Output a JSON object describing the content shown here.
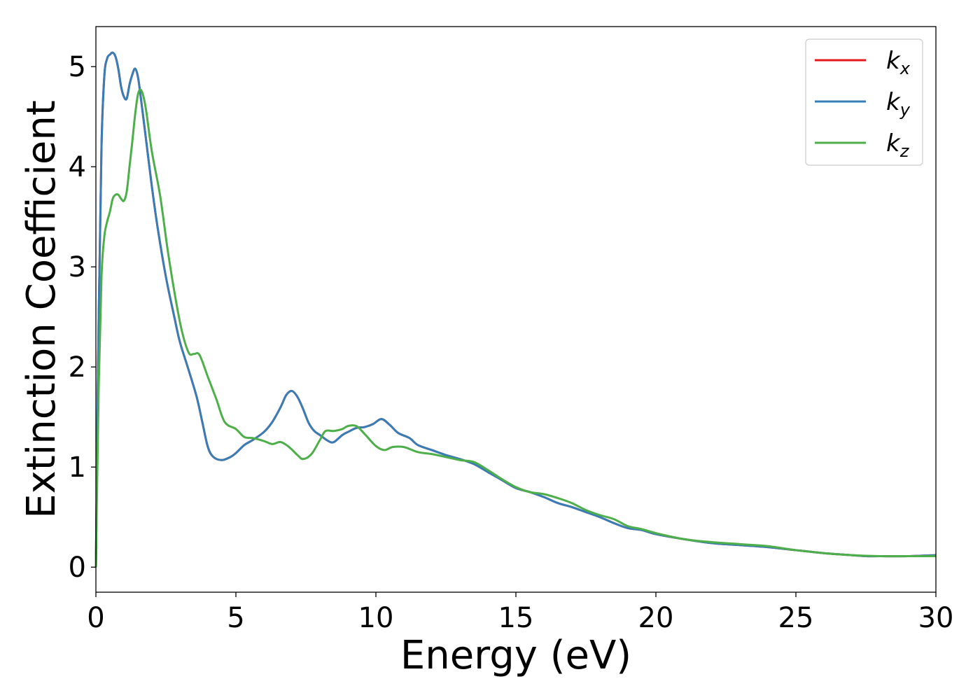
{
  "chart_data": {
    "type": "line",
    "xlabel": "Energy (eV)",
    "ylabel": "Extinction Coefficient",
    "xlim": [
      0,
      30
    ],
    "ylim": [
      -0.25,
      5.4
    ],
    "xticks": [
      0,
      5,
      10,
      15,
      20,
      25,
      30
    ],
    "yticks": [
      0,
      1,
      2,
      3,
      4,
      5
    ],
    "grid": false,
    "legend_position": "upper right",
    "series": [
      {
        "name": "k",
        "subscript": "x",
        "color": "#e41a1c",
        "x": [
          0,
          0.1,
          0.2,
          0.3,
          0.4,
          0.5,
          0.6,
          0.7,
          0.8,
          0.9,
          1.0,
          1.1,
          1.2,
          1.3,
          1.4,
          1.5,
          1.6,
          1.8,
          2.0,
          2.2,
          2.5,
          2.8,
          3.0,
          3.3,
          3.6,
          3.8,
          4.0,
          4.2,
          4.5,
          4.8,
          5.0,
          5.3,
          5.6,
          6.0,
          6.3,
          6.6,
          6.8,
          7.0,
          7.2,
          7.4,
          7.6,
          7.8,
          8.0,
          8.3,
          8.5,
          8.8,
          9.0,
          9.3,
          9.6,
          9.9,
          10.2,
          10.5,
          10.8,
          11.2,
          11.5,
          12.0,
          12.5,
          13.0,
          13.5,
          14.0,
          14.5,
          15.0,
          15.5,
          16.0,
          16.5,
          17.0,
          17.5,
          18.0,
          18.5,
          19.0,
          19.5,
          20.0,
          21.0,
          22.0,
          23.0,
          24.0,
          25.0,
          26.0,
          27.0,
          27.5,
          28.0,
          29.0,
          30.0
        ],
        "y": [
          0,
          2.5,
          4.2,
          4.9,
          5.08,
          5.12,
          5.14,
          5.1,
          4.98,
          4.8,
          4.7,
          4.68,
          4.82,
          4.92,
          4.98,
          4.9,
          4.7,
          4.25,
          3.8,
          3.4,
          2.9,
          2.5,
          2.25,
          1.98,
          1.7,
          1.45,
          1.2,
          1.1,
          1.07,
          1.1,
          1.14,
          1.22,
          1.27,
          1.35,
          1.45,
          1.6,
          1.72,
          1.76,
          1.7,
          1.58,
          1.44,
          1.36,
          1.32,
          1.26,
          1.25,
          1.32,
          1.35,
          1.39,
          1.4,
          1.43,
          1.48,
          1.42,
          1.34,
          1.29,
          1.22,
          1.17,
          1.12,
          1.08,
          1.03,
          0.95,
          0.87,
          0.79,
          0.75,
          0.7,
          0.64,
          0.6,
          0.55,
          0.5,
          0.44,
          0.39,
          0.37,
          0.33,
          0.28,
          0.24,
          0.22,
          0.2,
          0.17,
          0.14,
          0.12,
          0.11,
          0.11,
          0.11,
          0.12
        ]
      },
      {
        "name": "k",
        "subscript": "y",
        "color": "#377eb8",
        "x": [
          0,
          0.1,
          0.2,
          0.3,
          0.4,
          0.5,
          0.6,
          0.7,
          0.8,
          0.9,
          1.0,
          1.1,
          1.2,
          1.3,
          1.4,
          1.5,
          1.6,
          1.8,
          2.0,
          2.2,
          2.5,
          2.8,
          3.0,
          3.3,
          3.6,
          3.8,
          4.0,
          4.2,
          4.5,
          4.8,
          5.0,
          5.3,
          5.6,
          6.0,
          6.3,
          6.6,
          6.8,
          7.0,
          7.2,
          7.4,
          7.6,
          7.8,
          8.0,
          8.3,
          8.5,
          8.8,
          9.0,
          9.3,
          9.6,
          9.9,
          10.2,
          10.5,
          10.8,
          11.2,
          11.5,
          12.0,
          12.5,
          13.0,
          13.5,
          14.0,
          14.5,
          15.0,
          15.5,
          16.0,
          16.5,
          17.0,
          17.5,
          18.0,
          18.5,
          19.0,
          19.5,
          20.0,
          21.0,
          22.0,
          23.0,
          24.0,
          25.0,
          26.0,
          27.0,
          27.5,
          28.0,
          29.0,
          30.0
        ],
        "y": [
          0,
          2.5,
          4.2,
          4.9,
          5.08,
          5.12,
          5.14,
          5.1,
          4.98,
          4.8,
          4.7,
          4.68,
          4.82,
          4.92,
          4.98,
          4.9,
          4.7,
          4.25,
          3.8,
          3.4,
          2.9,
          2.5,
          2.25,
          1.98,
          1.7,
          1.45,
          1.2,
          1.1,
          1.07,
          1.1,
          1.14,
          1.22,
          1.27,
          1.35,
          1.45,
          1.6,
          1.72,
          1.76,
          1.7,
          1.58,
          1.44,
          1.36,
          1.32,
          1.26,
          1.25,
          1.32,
          1.35,
          1.39,
          1.4,
          1.43,
          1.48,
          1.42,
          1.34,
          1.29,
          1.22,
          1.17,
          1.12,
          1.08,
          1.03,
          0.95,
          0.87,
          0.79,
          0.75,
          0.7,
          0.64,
          0.6,
          0.55,
          0.5,
          0.44,
          0.39,
          0.37,
          0.33,
          0.28,
          0.24,
          0.22,
          0.2,
          0.17,
          0.14,
          0.12,
          0.11,
          0.11,
          0.11,
          0.12
        ]
      },
      {
        "name": "k",
        "subscript": "z",
        "color": "#4daf4a",
        "x": [
          0,
          0.1,
          0.2,
          0.3,
          0.4,
          0.5,
          0.6,
          0.7,
          0.8,
          0.9,
          1.0,
          1.1,
          1.2,
          1.3,
          1.4,
          1.5,
          1.6,
          1.7,
          1.8,
          2.0,
          2.3,
          2.6,
          3.0,
          3.3,
          3.5,
          3.7,
          4.0,
          4.3,
          4.6,
          5.0,
          5.3,
          5.6,
          6.0,
          6.3,
          6.6,
          6.9,
          7.2,
          7.4,
          7.7,
          8.0,
          8.2,
          8.5,
          8.8,
          9.0,
          9.3,
          9.6,
          10.0,
          10.3,
          10.6,
          11.0,
          11.5,
          12.0,
          12.5,
          13.0,
          13.5,
          14.0,
          14.5,
          15.0,
          15.5,
          16.0,
          16.5,
          17.0,
          17.5,
          18.0,
          18.5,
          19.0,
          19.5,
          20.0,
          21.0,
          22.0,
          23.0,
          24.0,
          25.0,
          26.0,
          27.0,
          28.0,
          29.0,
          30.0
        ],
        "y": [
          0,
          1.8,
          2.9,
          3.3,
          3.45,
          3.55,
          3.68,
          3.72,
          3.72,
          3.68,
          3.66,
          3.75,
          4.0,
          4.25,
          4.52,
          4.72,
          4.77,
          4.7,
          4.55,
          4.15,
          3.7,
          3.1,
          2.45,
          2.15,
          2.13,
          2.12,
          1.9,
          1.68,
          1.45,
          1.38,
          1.3,
          1.29,
          1.26,
          1.23,
          1.25,
          1.2,
          1.12,
          1.08,
          1.13,
          1.27,
          1.36,
          1.36,
          1.38,
          1.41,
          1.41,
          1.33,
          1.21,
          1.17,
          1.2,
          1.2,
          1.15,
          1.13,
          1.1,
          1.07,
          1.05,
          0.97,
          0.88,
          0.8,
          0.75,
          0.73,
          0.69,
          0.64,
          0.57,
          0.52,
          0.48,
          0.41,
          0.38,
          0.34,
          0.28,
          0.25,
          0.23,
          0.21,
          0.17,
          0.14,
          0.12,
          0.11,
          0.11,
          0.11
        ]
      }
    ]
  }
}
